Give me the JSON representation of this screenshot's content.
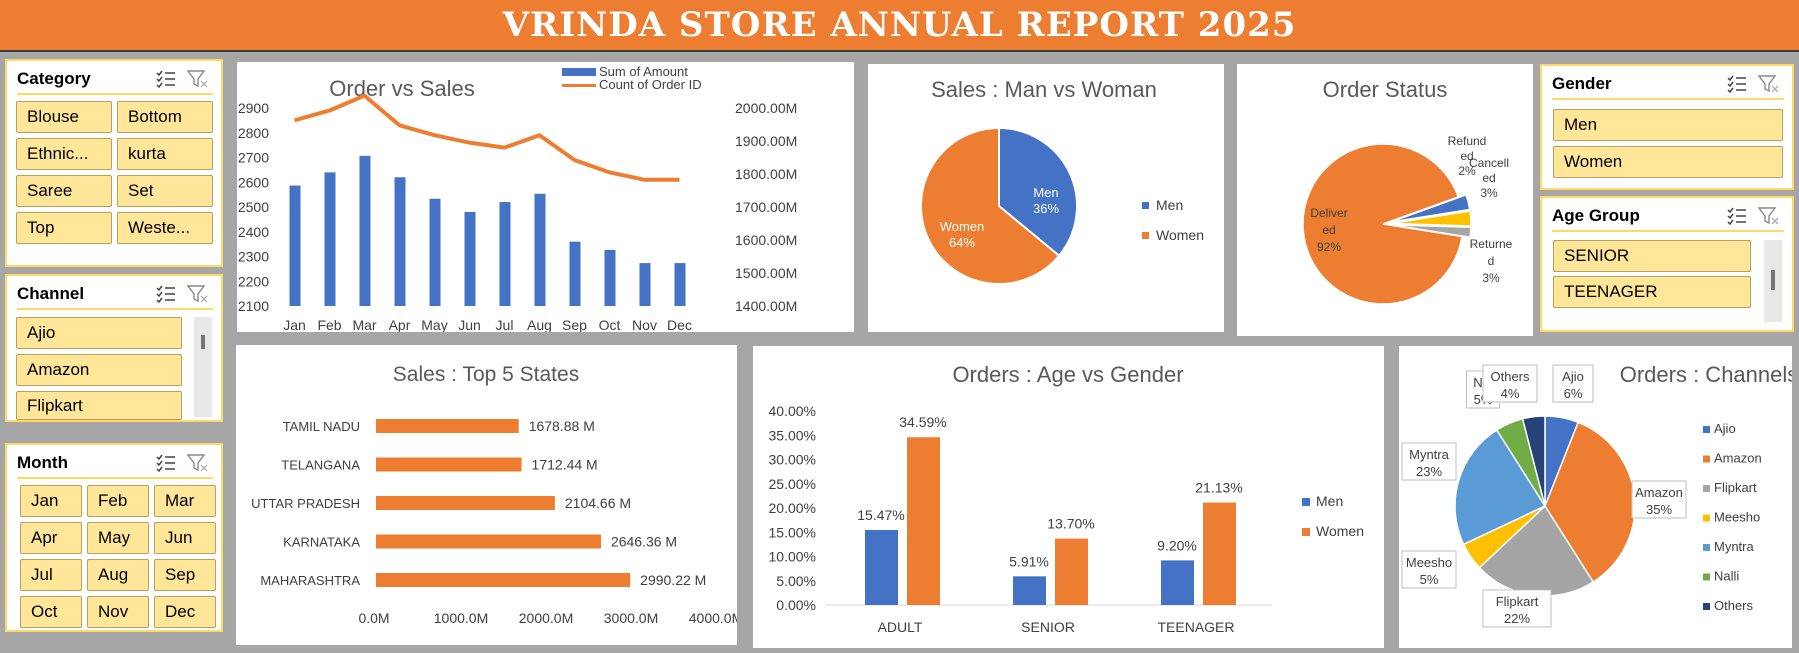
{
  "banner": {
    "title": "VRINDA STORE ANNUAL REPORT 2025",
    "bg": "#ed7d31"
  },
  "colors": {
    "blue": "#4472c4",
    "orange": "#ed7d31",
    "gray": "#a5a5a5",
    "yellow": "#ffc000",
    "lightblue": "#5b9bd5",
    "green": "#70ad47",
    "navy": "#264478",
    "slicer_button": "#ffe699",
    "slicer_border": "#ffd966"
  },
  "slicers": {
    "category": {
      "title": "Category",
      "items": [
        "Blouse",
        "Bottom",
        "Ethnic...",
        "kurta",
        "Saree",
        "Set",
        "Top",
        "Weste..."
      ]
    },
    "channel": {
      "title": "Channel",
      "items": [
        "Ajio",
        "Amazon",
        "Flipkart"
      ]
    },
    "month": {
      "title": "Month",
      "items": [
        "Jan",
        "Feb",
        "Mar",
        "Apr",
        "May",
        "Jun",
        "Jul",
        "Aug",
        "Sep",
        "Oct",
        "Nov",
        "Dec"
      ]
    },
    "gender": {
      "title": "Gender",
      "items": [
        "Men",
        "Women"
      ]
    },
    "age_group": {
      "title": "Age Group",
      "items": [
        "SENIOR",
        "TEENAGER"
      ]
    }
  },
  "chart_data": [
    {
      "id": "order_vs_sales",
      "type": "bar+line",
      "title": "Order vs Sales",
      "categories": [
        "Jan",
        "Feb",
        "Mar",
        "Apr",
        "May",
        "Jun",
        "Jul",
        "Aug",
        "Sep",
        "Oct",
        "Nov",
        "Dec"
      ],
      "series": [
        {
          "name": "Sum of Amount",
          "type": "bar",
          "axis": "right",
          "values": [
            1765,
            1805,
            1855,
            1790,
            1725,
            1685,
            1715,
            1740,
            1595,
            1570,
            1530,
            1530
          ]
        },
        {
          "name": "Count of Order ID",
          "type": "line",
          "axis": "left",
          "values": [
            2850,
            2890,
            2950,
            2830,
            2790,
            2760,
            2740,
            2790,
            2690,
            2640,
            2610,
            2610
          ]
        }
      ],
      "left_ticks": [
        "2100",
        "2200",
        "2300",
        "2400",
        "2500",
        "2600",
        "2700",
        "2800",
        "2900"
      ],
      "left_ylim": [
        2100,
        2900
      ],
      "right_ticks": [
        "1400.00M",
        "1500.00M",
        "1600.00M",
        "1700.00M",
        "1800.00M",
        "1900.00M",
        "2000.00M"
      ],
      "right_ylim": [
        1400,
        2000
      ],
      "legend": "top"
    },
    {
      "id": "sales_man_woman",
      "type": "pie",
      "title": "Sales : Man vs Woman",
      "categories": [
        "Men",
        "Women"
      ],
      "values": [
        36,
        64
      ],
      "labels": [
        "Men\n36%",
        "Women\n64%"
      ],
      "legend": "right"
    },
    {
      "id": "order_status",
      "type": "pie",
      "title": "Order Status",
      "categories": [
        "Delivered",
        "Returned",
        "Cancelled",
        "Refunded"
      ],
      "values": [
        92,
        3,
        3,
        2
      ],
      "labels": [
        "Deliver\ned\n92%",
        "Returne\nd\n3%",
        "Cancell\ned\n3%",
        "Refund\ned\n2%"
      ]
    },
    {
      "id": "top5_states",
      "type": "bar",
      "orientation": "horizontal",
      "title": "Sales : Top 5 States",
      "categories": [
        "TAMIL NADU",
        "TELANGANA",
        "UTTAR PRADESH",
        "KARNATAKA",
        "MAHARASHTRA"
      ],
      "values": [
        1678.88,
        1712.44,
        2104.66,
        2646.36,
        2990.22
      ],
      "value_labels": [
        "1678.88 M",
        "1712.44 M",
        "2104.66 M",
        "2646.36 M",
        "2990.22 M"
      ],
      "x_ticks": [
        "0.0M",
        "1000.0M",
        "2000.0M",
        "3000.0M",
        "4000.0M"
      ],
      "xlim": [
        0,
        4000
      ]
    },
    {
      "id": "age_vs_gender",
      "type": "bar",
      "title": "Orders : Age vs Gender",
      "categories": [
        "ADULT",
        "SENIOR",
        "TEENAGER"
      ],
      "series": [
        {
          "name": "Men",
          "values": [
            15.47,
            5.91,
            9.2
          ],
          "labels": [
            "15.47%",
            "5.91%",
            "9.20%"
          ]
        },
        {
          "name": "Women",
          "values": [
            34.59,
            13.7,
            21.13
          ],
          "labels": [
            "34.59%",
            "13.70%",
            "21.13%"
          ]
        }
      ],
      "y_ticks": [
        "0.00%",
        "5.00%",
        "10.00%",
        "15.00%",
        "20.00%",
        "25.00%",
        "30.00%",
        "35.00%",
        "40.00%"
      ],
      "ylim": [
        0,
        40
      ],
      "legend": "right"
    },
    {
      "id": "orders_channels",
      "type": "pie",
      "title": "Orders : Channels",
      "categories": [
        "Ajio",
        "Amazon",
        "Flipkart",
        "Meesho",
        "Myntra",
        "Nalli",
        "Others"
      ],
      "values": [
        6,
        35,
        22,
        5,
        23,
        5,
        4
      ],
      "labels": [
        "Ajio\n6%",
        "Amazon\n35%",
        "Flipkart\n22%",
        "Meesho\n5%",
        "Myntra\n23%",
        "Nal\n5%",
        "Others\n4%"
      ],
      "legend": "right"
    }
  ]
}
